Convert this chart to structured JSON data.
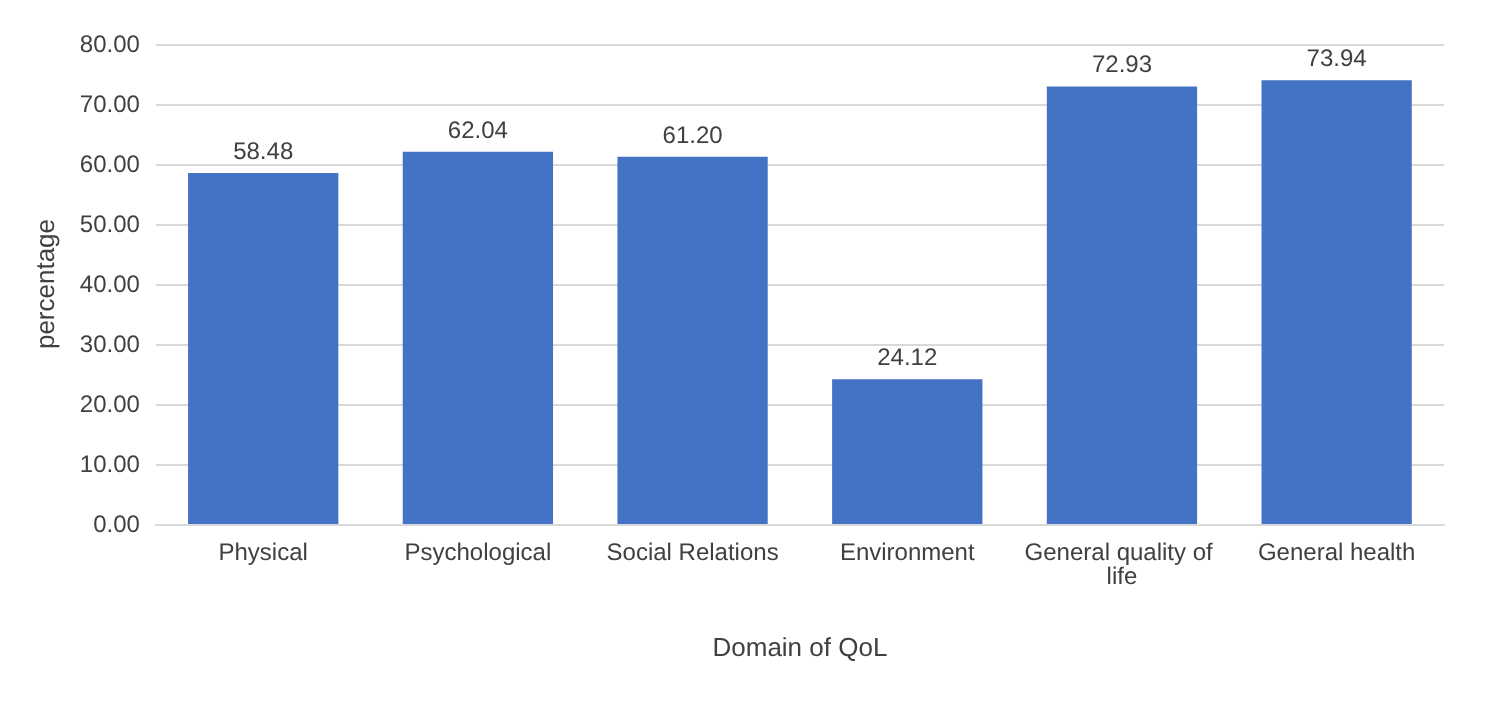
{
  "chart_data": {
    "type": "bar",
    "xlabel": "Domain of QoL",
    "ylabel": "percentage",
    "categories": [
      "Physical",
      "Psychological",
      "Social Relations",
      "Environment",
      "General quality of life",
      "General health"
    ],
    "values": [
      58.48,
      62.04,
      61.2,
      24.12,
      72.93,
      73.94
    ],
    "value_labels": [
      "58.48",
      "62.04",
      "61.20",
      "24.12",
      "72.93",
      "73.94"
    ],
    "color": "#4472c4",
    "ylim": [
      0,
      80
    ],
    "yticks": [
      {
        "value": 0,
        "label": "0.00"
      },
      {
        "value": 10,
        "label": "10.00"
      },
      {
        "value": 20,
        "label": "20.00"
      },
      {
        "value": 30,
        "label": "30.00"
      },
      {
        "value": 40,
        "label": "40.00"
      },
      {
        "value": 50,
        "label": "50.00"
      },
      {
        "value": 60,
        "label": "60.00"
      },
      {
        "value": 70,
        "label": "70.00"
      },
      {
        "value": 80,
        "label": "80.00"
      }
    ],
    "grid": true
  }
}
